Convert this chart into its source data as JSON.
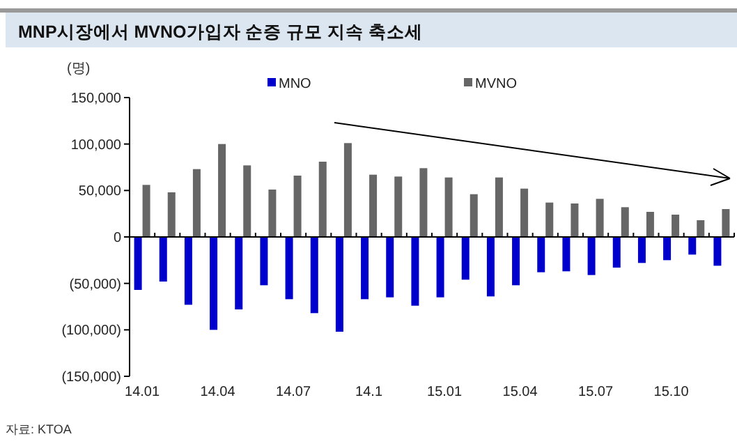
{
  "chart_data": {
    "type": "bar",
    "title": "MNP시장에서 MVNO가입자 순증 규모 지속 축소세",
    "ylabel": "(명)",
    "annotations": [
      "자료: KTOA"
    ],
    "categories": [
      "14.01",
      null,
      null,
      "14.04",
      null,
      null,
      "14.07",
      null,
      null,
      "14.1",
      null,
      null,
      "15.01",
      null,
      null,
      "15.04",
      null,
      null,
      "15.07",
      null,
      null,
      "15.10",
      null,
      null
    ],
    "series": [
      {
        "name": "MNO",
        "color": "#0000cc",
        "values": [
          -57000,
          -48000,
          -73000,
          -100000,
          -78000,
          -52000,
          -67000,
          -82000,
          -102000,
          -67000,
          -65000,
          -74000,
          -65000,
          -46000,
          -64000,
          -52000,
          -38000,
          -37000,
          -41000,
          -33000,
          -28000,
          -25000,
          -19000,
          -31000
        ]
      },
      {
        "name": "MVNO",
        "color": "#666666",
        "values": [
          56000,
          48000,
          73000,
          100000,
          77000,
          51000,
          66000,
          81000,
          101000,
          67000,
          65000,
          74000,
          64000,
          46000,
          64000,
          52000,
          37000,
          36000,
          41000,
          32000,
          27000,
          24000,
          18000,
          30000
        ]
      }
    ],
    "ylim": [
      -150000,
      150000
    ],
    "yticks": [
      {
        "value": 150000,
        "label": "150,000"
      },
      {
        "value": 100000,
        "label": "100,000"
      },
      {
        "value": 50000,
        "label": "50,000"
      },
      0,
      {
        "value": -50000,
        "label": "(50,000)"
      },
      {
        "value": -100000,
        "label": "(100,000)"
      },
      {
        "value": -150000,
        "label": "(150,000)"
      }
    ],
    "legend": "top"
  }
}
